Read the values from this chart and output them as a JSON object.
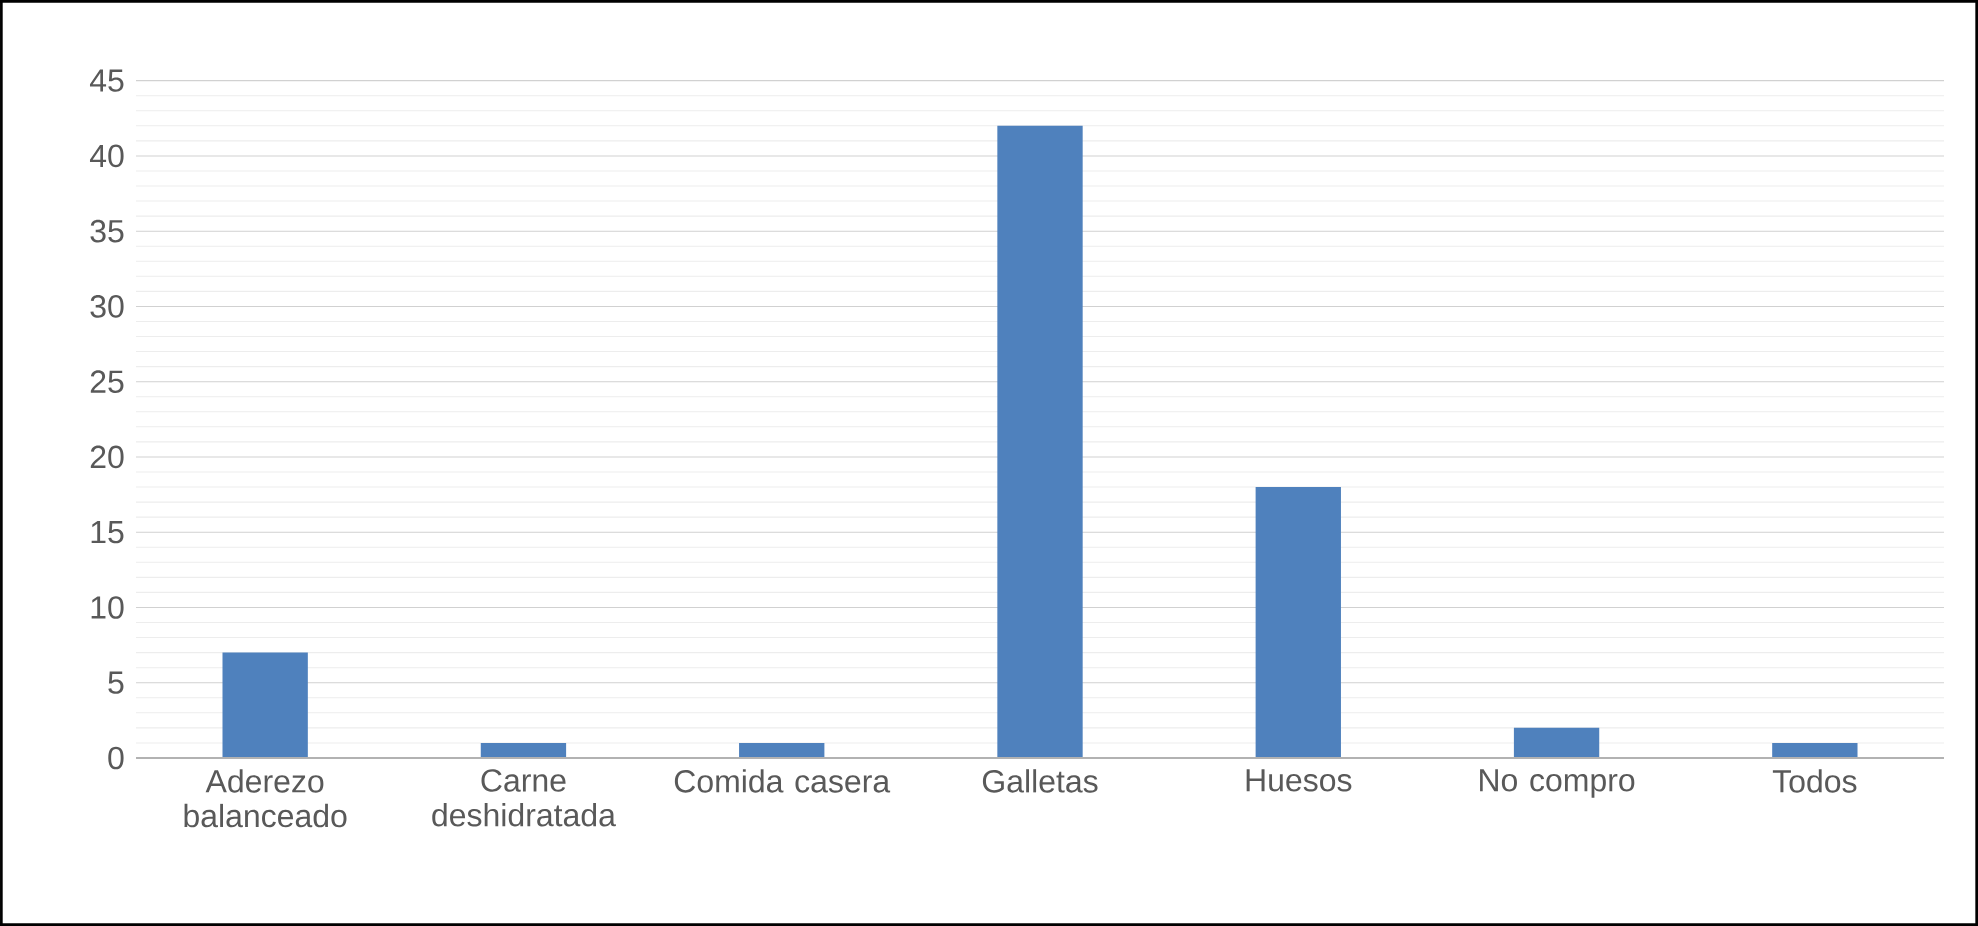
{
  "chart_data": {
    "type": "bar",
    "categories": [
      "Aderezo balanceado",
      "Carne deshidratada",
      "Comida casera",
      "Galletas",
      "Huesos",
      "No compro",
      "Todos"
    ],
    "values": [
      7,
      1,
      1,
      42,
      18,
      2,
      1
    ],
    "color": "#4f81bd",
    "ylim": [
      0,
      45
    ],
    "yticks": [
      0,
      5,
      10,
      15,
      20,
      25,
      30,
      35,
      40,
      45
    ],
    "grid": "y"
  }
}
